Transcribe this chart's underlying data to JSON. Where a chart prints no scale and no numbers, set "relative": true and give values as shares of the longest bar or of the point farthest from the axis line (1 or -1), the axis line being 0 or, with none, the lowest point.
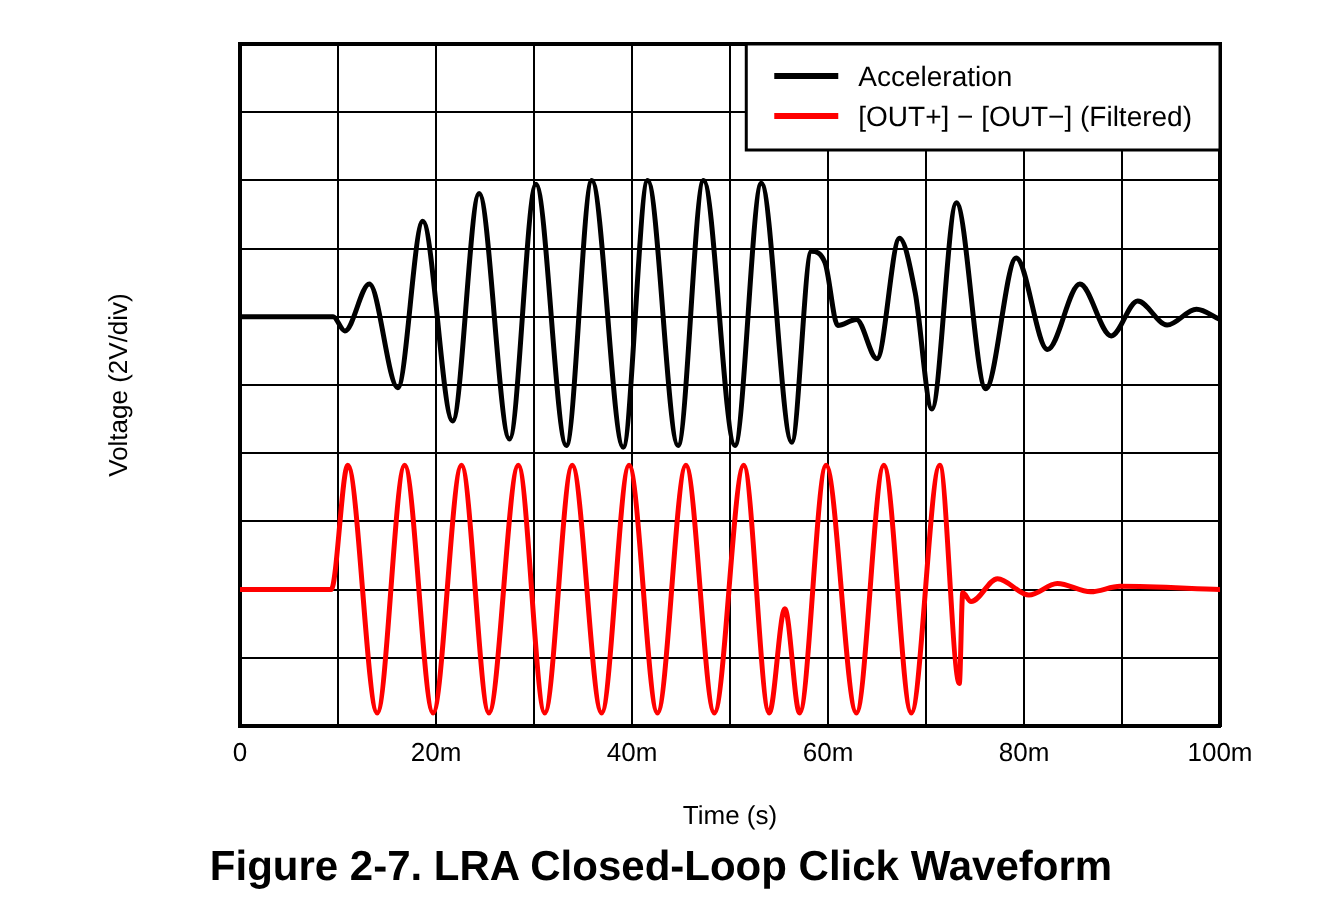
{
  "chart_data": {
    "type": "line",
    "title": "Figure 2-7. LRA Closed-Loop Click Waveform",
    "xlabel": "Time (s)",
    "ylabel": "Voltage (2V/div)",
    "relative": true,
    "grid": true,
    "legend": "top right",
    "marker": "none",
    "line_style": "solid",
    "xlim": [
      0,
      100
    ],
    "xticks": [
      0,
      {
        "value": 10,
        "label": null
      },
      {
        "value": 20,
        "label": "20m"
      },
      {
        "value": 30,
        "label": null
      },
      {
        "value": 40,
        "label": "40m"
      },
      {
        "value": 50,
        "label": null
      },
      {
        "value": 60,
        "label": "60m"
      },
      {
        "value": 70,
        "label": null
      },
      {
        "value": 80,
        "label": "80m"
      },
      {
        "value": 90,
        "label": null
      },
      {
        "value": 100,
        "label": "100m"
      }
    ],
    "series": [
      {
        "name": "Acceleration",
        "color": "#000000",
        "x": [
          0,
          9.5,
          10.7,
          13.2,
          16.1,
          18.65,
          21.7,
          24.4,
          27.5,
          30.2,
          33.3,
          35.9,
          39.1,
          41.6,
          44.7,
          47.3,
          50.5,
          53.2,
          56.3,
          58.3,
          59.7,
          61,
          62.9,
          65,
          67.3,
          68.9,
          70.6,
          73.1,
          76.1,
          79.2,
          82.4,
          85.7,
          88.9,
          91.6,
          94.6,
          97.6,
          100
        ],
        "values": [
          0.75,
          0.75,
          0.724,
          0.81,
          0.62,
          0.925,
          0.559,
          0.976,
          0.526,
          0.993,
          0.514,
          1,
          0.511,
          1,
          0.514,
          1,
          0.514,
          0.995,
          0.52,
          0.87,
          0.849,
          0.734,
          0.745,
          0.673,
          0.894,
          0.794,
          0.581,
          0.959,
          0.618,
          0.858,
          0.69,
          0.81,
          0.715,
          0.779,
          0.735,
          0.764,
          0.745
        ]
      },
      {
        "name": "[OUT+] − [OUT−] (Filtered)",
        "color": "#ff0000",
        "x": [
          0,
          9.3,
          11,
          14,
          16.8,
          19.7,
          22.6,
          25.4,
          28.4,
          31.1,
          33.9,
          36.9,
          39.7,
          42.6,
          45.5,
          48.4,
          51.4,
          54,
          55.6,
          57.1,
          59.8,
          62.9,
          65.7,
          68.5,
          71.4,
          73.4,
          73.75,
          74.6,
          77.3,
          80.5,
          83.4,
          86.8,
          89.8,
          100
        ],
        "values": [
          0.25,
          0.25,
          0.478,
          0.024,
          0.478,
          0.024,
          0.478,
          0.024,
          0.478,
          0.024,
          0.478,
          0.024,
          0.478,
          0.024,
          0.478,
          0.024,
          0.478,
          0.024,
          0.215,
          0.024,
          0.478,
          0.024,
          0.478,
          0.024,
          0.478,
          0.078,
          0.244,
          0.228,
          0.27,
          0.24,
          0.261,
          0.246,
          0.256,
          0.25
        ]
      }
    ]
  }
}
